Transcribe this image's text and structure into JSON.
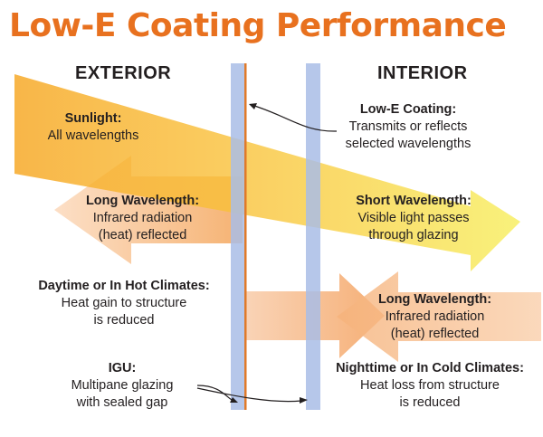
{
  "title": "Low-E Coating Performance",
  "sides": {
    "exterior": "EXTERIOR",
    "interior": "INTERIOR"
  },
  "labels": {
    "sunlight": {
      "heading": "Sunlight:",
      "lines": [
        "All wavelengths"
      ]
    },
    "low_e_coating": {
      "heading": "Low-E Coating:",
      "lines": [
        "Transmits or reflects",
        "selected wavelengths"
      ]
    },
    "long_wave_ext": {
      "heading": "Long Wavelength:",
      "lines": [
        "Infrared radiation",
        "(heat) reflected"
      ]
    },
    "short_wave": {
      "heading": "Short Wavelength:",
      "lines": [
        "Visible light passes",
        "through glazing"
      ]
    },
    "daytime": {
      "heading": "Daytime or In Hot Climates:",
      "lines": [
        "Heat gain to structure",
        "is reduced"
      ]
    },
    "long_wave_int": {
      "heading": "Long Wavelength:",
      "lines": [
        "Infrared radiation",
        "(heat) reflected"
      ]
    },
    "igu": {
      "heading": "IGU:",
      "lines": [
        "Multipane glazing",
        "with sealed gap"
      ]
    },
    "nighttime": {
      "heading": "Nighttime or In Cold Climates:",
      "lines": [
        "Heat loss from structure",
        "is reduced"
      ]
    }
  },
  "colors": {
    "title": "#e8711f",
    "glass": "#a9bde6",
    "coating": "#e07a2a",
    "sunlight_arrow": "#f7a928",
    "visible_arrow": "#f7ee5a",
    "infrared_arrow": "#f4a66a"
  }
}
